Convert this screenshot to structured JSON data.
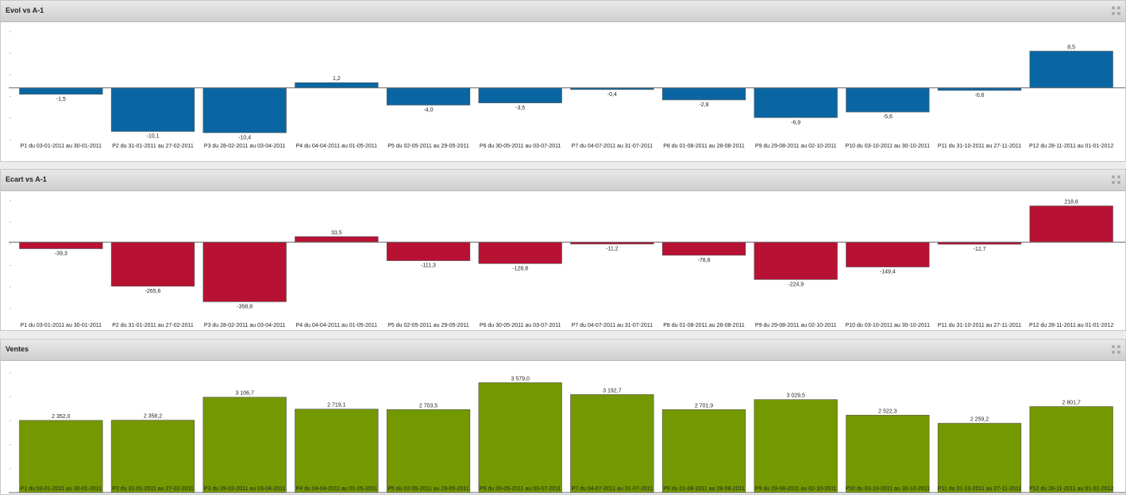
{
  "colors": {
    "evol": "#0a66a3",
    "ecart": "#b71233",
    "ventes": "#739800"
  },
  "icons": {
    "maximize": "expand-arrows-icon"
  },
  "categories": [
    "P1  du 03-01-2011 au 30-01-2011",
    "P2  du 31-01-2011 au 27-02-2011",
    "P3  du 28-02-2011 au 03-04-2011",
    "P4  du 04-04-2011 au 01-05-2011",
    "P5  du 02-05-2011 au 29-05-2011",
    "P6  du 30-05-2011 au 03-07-2011",
    "P7  du 04-07-2011 au 31-07-2011",
    "P8  du 01-08-2011 au 28-08-2011",
    "P9  du 29-08-2011 au 02-10-2011",
    "P10  du 03-10-2011 au 30-10-2011",
    "P11  du 31-10-2011 au 27-11-2011",
    "P12  du 28-11-2011 au 01-01-2012"
  ],
  "chart_data": [
    {
      "type": "bar",
      "title": "Evol vs A-1",
      "values": [
        -1.5,
        -10.1,
        -10.4,
        1.2,
        -4.0,
        -3.5,
        -0.4,
        -2.8,
        -6.9,
        -5.6,
        -0.6,
        8.5
      ],
      "labels": [
        "-1,5",
        "-10,1",
        "-10,4",
        "1,2",
        "-4,0",
        "-3,5",
        "-0,4",
        "-2,8",
        "-6,9",
        "-5,6",
        "-0,6",
        "8,5"
      ],
      "ylim": [
        -12,
        13
      ],
      "grid": false,
      "color": "#0a66a3"
    },
    {
      "type": "bar",
      "title": "Ecart vs A-1",
      "values": [
        -39.3,
        -265.6,
        -358.8,
        33.5,
        -111.3,
        -128.8,
        -11.2,
        -78.8,
        -224.9,
        -149.4,
        -12.7,
        218.6
      ],
      "labels": [
        "-39,3",
        "-265,6",
        "-358,8",
        "33,5",
        "-111,3",
        "-128,8",
        "-11,2",
        "-78,8",
        "-224,9",
        "-149,4",
        "-12,7",
        "218,6"
      ],
      "ylim": [
        -400,
        250
      ],
      "grid": false,
      "color": "#b71233"
    },
    {
      "type": "bar",
      "title": "Ventes",
      "values": [
        2352.0,
        2358.2,
        3106.7,
        2719.1,
        2703.5,
        3579.0,
        3192.7,
        2701.9,
        3029.5,
        2522.3,
        2259.2,
        2801.7
      ],
      "labels": [
        "2 352,0",
        "2 358,2",
        "3 106,7",
        "2 719,1",
        "2 703,5",
        "3 579,0",
        "3 192,7",
        "2 701,9",
        "3 029,5",
        "2 522,3",
        "2 259,2",
        "2 801,7"
      ],
      "ylim": [
        0,
        3900
      ],
      "grid": false,
      "color": "#739800"
    }
  ]
}
